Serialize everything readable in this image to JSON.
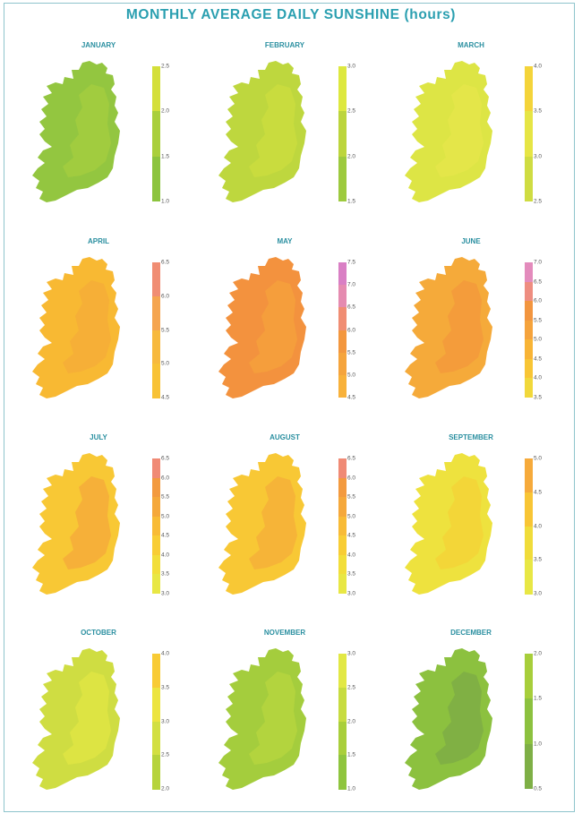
{
  "title": "MONTHLY AVERAGE DAILY SUNSHINE (hours)",
  "panels": [
    {
      "month": "JANUARY",
      "ticks": [
        "2.5",
        "2.0",
        "1.5",
        "1.0"
      ],
      "colorbar": [
        "#d4df3a",
        "#a9cf3b",
        "#8cc43e"
      ],
      "fill": "#93c640",
      "fill2": "#a3cc40"
    },
    {
      "month": "FEBRUARY",
      "ticks": [
        "3.0",
        "2.5",
        "2.0",
        "1.5"
      ],
      "colorbar": [
        "#dde83f",
        "#bcd53c",
        "#9dca3e"
      ],
      "fill": "#bed73e",
      "fill2": "#cbdd3e"
    },
    {
      "month": "MARCH",
      "ticks": [
        "4.0",
        "3.5",
        "3.0",
        "2.5"
      ],
      "colorbar": [
        "#f4d43a",
        "#e6e545",
        "#cfdc42"
      ],
      "fill": "#dde545",
      "fill2": "#e5e64a"
    },
    {
      "month": "APRIL",
      "ticks": [
        "6.5",
        "6.0",
        "5.5",
        "5.0",
        "4.5"
      ],
      "colorbar": [
        "#f08d73",
        "#f5a550",
        "#f7b93d",
        "#f8c235"
      ],
      "fill": "#f8b933",
      "fill2": "#f6ad38"
    },
    {
      "month": "MAY",
      "ticks": [
        "7.5",
        "7.0",
        "6.5",
        "6.0",
        "5.5",
        "5.0",
        "4.5"
      ],
      "colorbar": [
        "#d97fc4",
        "#e58bb0",
        "#f08d73",
        "#f3973e",
        "#f5a43c",
        "#f8b13a"
      ],
      "fill": "#f3923e",
      "fill2": "#f5a03c"
    },
    {
      "month": "JUNE",
      "ticks": [
        "7.0",
        "6.5",
        "6.0",
        "5.5",
        "5.0",
        "4.5",
        "4.0",
        "3.5"
      ],
      "colorbar": [
        "#e38bbc",
        "#ee8d80",
        "#f2953f",
        "#f5a33c",
        "#f8b436",
        "#f8c535",
        "#f1d83b"
      ],
      "fill": "#f5aa3a",
      "fill2": "#f39a3c"
    },
    {
      "month": "JULY",
      "ticks": [
        "6.5",
        "6.0",
        "5.5",
        "5.0",
        "4.5",
        "4.0",
        "3.5",
        "3.0"
      ],
      "colorbar": [
        "#f08a75",
        "#f39a3f",
        "#f5a83b",
        "#f8bb36",
        "#f8cd35",
        "#f2de3a",
        "#e8e744"
      ],
      "fill": "#f8c835",
      "fill2": "#f6ac3a"
    },
    {
      "month": "AUGUST",
      "ticks": [
        "6.5",
        "6.0",
        "5.5",
        "5.0",
        "4.5",
        "4.0",
        "3.5",
        "3.0"
      ],
      "colorbar": [
        "#f08a75",
        "#f39a3f",
        "#f5a83b",
        "#f8bb36",
        "#f8cd35",
        "#f2de3a",
        "#e8e744"
      ],
      "fill": "#f8c835",
      "fill2": "#f6b038"
    },
    {
      "month": "SEPTEMBER",
      "ticks": [
        "5.0",
        "4.5",
        "4.0",
        "3.5",
        "3.0"
      ],
      "colorbar": [
        "#f6aa3b",
        "#f8c535",
        "#f0dc3a",
        "#e8e745"
      ],
      "fill": "#eee23e",
      "fill2": "#f3d337"
    },
    {
      "month": "OCTOBER",
      "ticks": [
        "4.0",
        "3.5",
        "3.0",
        "2.5",
        "2.0"
      ],
      "colorbar": [
        "#f8cb35",
        "#ece43f",
        "#d2df42",
        "#b6d33c"
      ],
      "fill": "#cfdd42",
      "fill2": "#dfe543"
    },
    {
      "month": "NOVEMBER",
      "ticks": [
        "3.0",
        "2.5",
        "2.0",
        "1.5",
        "1.0"
      ],
      "colorbar": [
        "#e2e845",
        "#c7dc40",
        "#a9cf3b",
        "#8fc53e"
      ],
      "fill": "#a4cd3d",
      "fill2": "#b6d53e"
    },
    {
      "month": "DECEMBER",
      "ticks": [
        "2.0",
        "1.5",
        "1.0",
        "0.5"
      ],
      "colorbar": [
        "#a7ce3b",
        "#8cc13f",
        "#7eaf46"
      ],
      "fill": "#8cc13f",
      "fill2": "#7ead45"
    }
  ]
}
